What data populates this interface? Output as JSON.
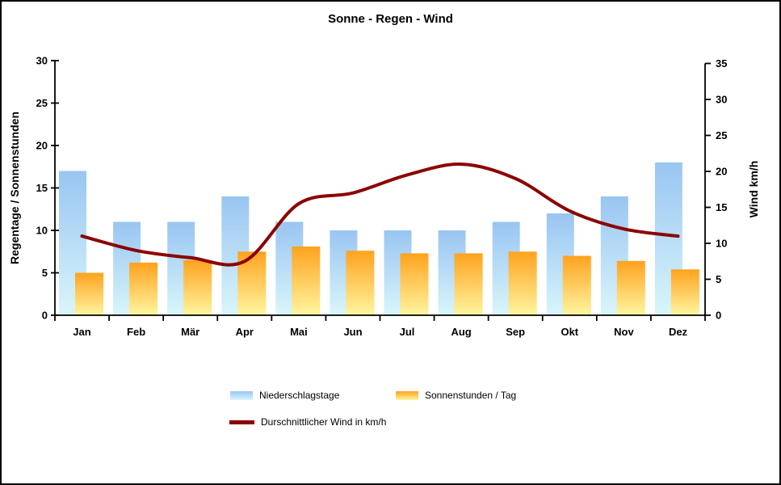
{
  "window": {
    "background": "#FFFFFF",
    "border_color": "#000000"
  },
  "chart_data": {
    "type": "combo-bar-line",
    "title": "Sonne - Regen - Wind",
    "categories": [
      "Jan",
      "Feb",
      "Mär",
      "Apr",
      "Mai",
      "Jun",
      "Jul",
      "Aug",
      "Sep",
      "Okt",
      "Nov",
      "Dez"
    ],
    "series": [
      {
        "name": "Niederschlagstage",
        "type": "bar",
        "axis": "left",
        "values": [
          17,
          11,
          11,
          14,
          11,
          10,
          10,
          10,
          11,
          12,
          14,
          18
        ]
      },
      {
        "name": "Sonnenstunden / Tag",
        "type": "bar",
        "axis": "left",
        "values": [
          5.0,
          6.2,
          6.5,
          7.5,
          8.1,
          7.6,
          7.3,
          7.3,
          7.5,
          7.0,
          6.4,
          5.4
        ]
      },
      {
        "name": "Durschnittlicher Wind in km/h",
        "type": "line",
        "axis": "right",
        "values": [
          11,
          9,
          8,
          7.5,
          15.5,
          17,
          19.5,
          21,
          19,
          14.5,
          12,
          11
        ]
      }
    ],
    "left_axis": {
      "label": "Regentage / Sonnenstunden",
      "min": 0,
      "max": 30,
      "step": 5
    },
    "right_axis": {
      "label": "Wind km/h",
      "min": 0,
      "max": 35,
      "step": 5
    },
    "grid": false,
    "legend_position": "bottom",
    "colors": {
      "rain_bar_top": "#99C5F2",
      "rain_bar_bottom": "#D9F6FA",
      "sun_bar_top": "#FFA21E",
      "sun_bar_bottom": "#FFF6A0",
      "wind_line": "#8B0000",
      "text": "#000000",
      "axis": "#000000"
    }
  }
}
